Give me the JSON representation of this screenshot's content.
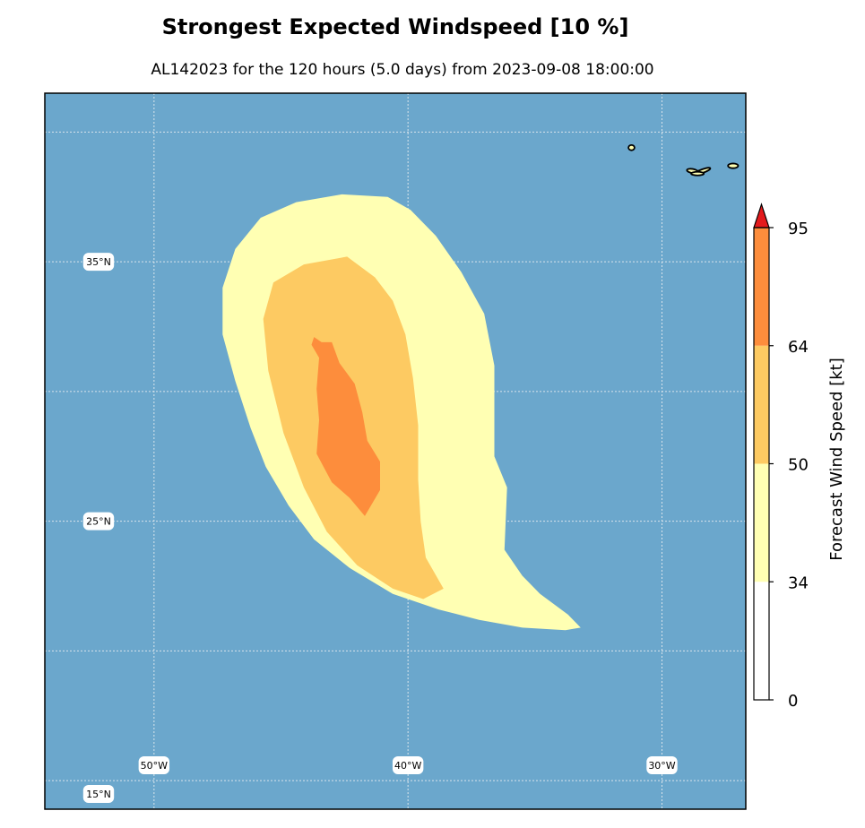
{
  "title": "Strongest Expected Windspeed [10 %]",
  "subtitle": "AL142023 for the 120 hours (5.0 days) from 2023-09-08 18:00:00",
  "colors": {
    "ocean": "#6ba7cc",
    "band_34_50": "#ffffb3",
    "band_50_64": "#fdca62",
    "band_64_95": "#fd8d3c",
    "extend_above_95": "#e31a1c",
    "band_0_34": "#ffffff",
    "gridline": "#d9e4ec"
  },
  "chart_data": {
    "type": "filled-contour-map",
    "storm_id": "AL142023",
    "forecast_hours": 120,
    "forecast_days": 5.0,
    "init_time": "2023-09-08 18:00:00",
    "probability_level_percent": 10,
    "extent": {
      "lon_min": -54.3,
      "lon_max": -26.7,
      "lat_min": 13.9,
      "lat_max": 41.5
    },
    "lon_ticks": [
      {
        "lon": -50,
        "label": "50°W"
      },
      {
        "lon": -40,
        "label": "40°W"
      },
      {
        "lon": -30,
        "label": "30°W"
      }
    ],
    "lat_ticks": [
      {
        "lat": 35,
        "label": "35°N"
      },
      {
        "lat": 25,
        "label": "25°N"
      },
      {
        "lat": 15,
        "label": "15°N"
      }
    ],
    "colorbar": {
      "label": "Forecast Wind Speed [kt]",
      "levels": [
        0,
        34,
        50,
        64,
        95
      ],
      "extend": "max",
      "tick_labels": [
        "0",
        "34",
        "50",
        "64",
        "95"
      ]
    },
    "contours": [
      {
        "level": "34-50 kt",
        "color_key": "band_34_50",
        "polygon": [
          [
            -40.8,
            37.5
          ],
          [
            -39.9,
            37.0
          ],
          [
            -38.9,
            36.0
          ],
          [
            -37.9,
            34.6
          ],
          [
            -37.0,
            33.0
          ],
          [
            -36.6,
            31.0
          ],
          [
            -36.6,
            27.5
          ],
          [
            -36.1,
            26.3
          ],
          [
            -36.2,
            23.9
          ],
          [
            -35.5,
            22.9
          ],
          [
            -34.8,
            22.2
          ],
          [
            -33.7,
            21.4
          ],
          [
            -33.2,
            20.9
          ],
          [
            -33.8,
            20.8
          ],
          [
            -35.5,
            20.9
          ],
          [
            -37.2,
            21.2
          ],
          [
            -38.8,
            21.6
          ],
          [
            -40.6,
            22.2
          ],
          [
            -42.3,
            23.2
          ],
          [
            -43.7,
            24.3
          ],
          [
            -44.7,
            25.6
          ],
          [
            -45.6,
            27.1
          ],
          [
            -46.2,
            28.6
          ],
          [
            -46.8,
            30.4
          ],
          [
            -47.3,
            32.2
          ],
          [
            -47.3,
            34.0
          ],
          [
            -46.8,
            35.5
          ],
          [
            -45.8,
            36.7
          ],
          [
            -44.4,
            37.3
          ],
          [
            -42.6,
            37.6
          ]
        ]
      },
      {
        "level": "50-64 kt",
        "color_key": "band_50_64",
        "polygon": [
          [
            -42.4,
            35.2
          ],
          [
            -41.3,
            34.4
          ],
          [
            -40.6,
            33.5
          ],
          [
            -40.1,
            32.2
          ],
          [
            -39.8,
            30.5
          ],
          [
            -39.6,
            28.7
          ],
          [
            -39.6,
            26.6
          ],
          [
            -39.5,
            25.0
          ],
          [
            -39.3,
            23.6
          ],
          [
            -38.6,
            22.4
          ],
          [
            -39.4,
            22.0
          ],
          [
            -40.6,
            22.4
          ],
          [
            -42.0,
            23.3
          ],
          [
            -43.2,
            24.6
          ],
          [
            -44.1,
            26.3
          ],
          [
            -44.9,
            28.4
          ],
          [
            -45.5,
            30.8
          ],
          [
            -45.7,
            32.8
          ],
          [
            -45.3,
            34.2
          ],
          [
            -44.1,
            34.9
          ]
        ]
      },
      {
        "level": "64-95 kt",
        "color_key": "band_64_95",
        "polygon": [
          [
            -43.7,
            32.1
          ],
          [
            -43.4,
            31.9
          ],
          [
            -43.0,
            31.9
          ],
          [
            -42.7,
            31.1
          ],
          [
            -42.1,
            30.3
          ],
          [
            -41.8,
            29.2
          ],
          [
            -41.6,
            28.1
          ],
          [
            -41.1,
            27.3
          ],
          [
            -41.1,
            26.2
          ],
          [
            -41.7,
            25.2
          ],
          [
            -42.3,
            25.9
          ],
          [
            -43.0,
            26.5
          ],
          [
            -43.6,
            27.6
          ],
          [
            -43.5,
            28.9
          ],
          [
            -43.6,
            30.1
          ],
          [
            -43.5,
            31.3
          ],
          [
            -43.8,
            31.8
          ]
        ]
      }
    ],
    "islands": [
      {
        "name": "Flores/Corvo",
        "center": [
          -31.2,
          39.4
        ],
        "rx": 0.12,
        "ry": 0.1,
        "rot": 0
      },
      {
        "name": "Faial",
        "center": [
          -28.8,
          38.5
        ],
        "rx": 0.22,
        "ry": 0.08,
        "rot": 10
      },
      {
        "name": "Pico",
        "center": [
          -28.4,
          38.5
        ],
        "rx": 0.32,
        "ry": 0.06,
        "rot": -20
      },
      {
        "name": "Sao Jorge",
        "center": [
          -28.6,
          38.4
        ],
        "rx": 0.25,
        "ry": 0.06,
        "rot": 0
      },
      {
        "name": "Terceira",
        "center": [
          -27.2,
          38.7
        ],
        "rx": 0.2,
        "ry": 0.09,
        "rot": 0
      }
    ]
  }
}
